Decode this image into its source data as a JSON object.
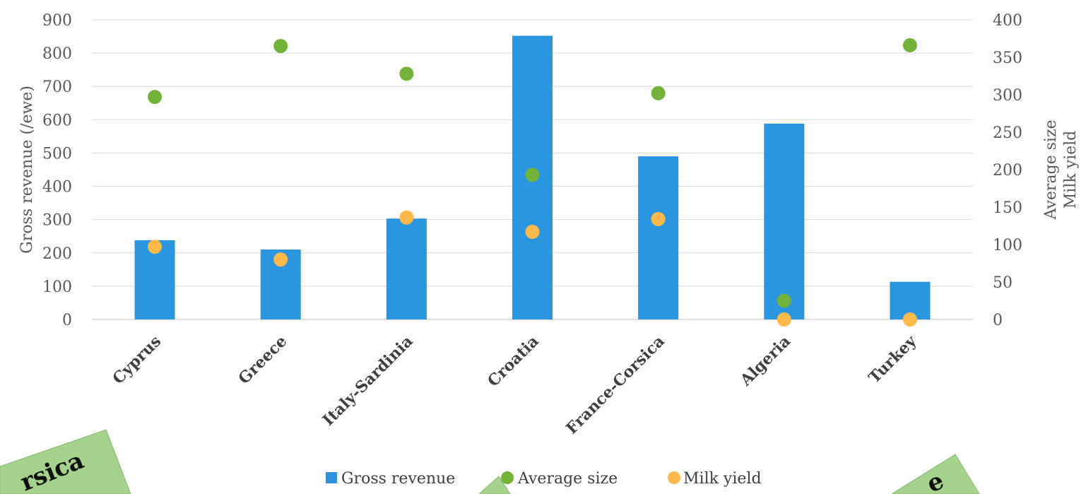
{
  "chart_data": {
    "type": "bar",
    "categories": [
      "Cyprus",
      "Greece",
      "Italy-Sardinia",
      "Croatia",
      "France-Corsica",
      "Algeria",
      "Turkey"
    ],
    "series": [
      {
        "name": "Gross revenue",
        "type": "bar",
        "axis": "left",
        "color": "#2a96e0",
        "values": [
          238,
          210,
          303,
          852,
          490,
          588,
          113
        ]
      },
      {
        "name": "Average size",
        "type": "scatter",
        "axis": "right",
        "color": "#73b33a",
        "values": [
          297,
          365,
          328,
          193,
          302,
          25,
          366
        ]
      },
      {
        "name": "Milk yield",
        "type": "scatter",
        "axis": "right",
        "color": "#ffb84a",
        "values": [
          97,
          80,
          136,
          117,
          134,
          0,
          0
        ]
      }
    ],
    "ylabel": "Gross revenue (/ewe)",
    "y2label": [
      "Average size",
      "Milk yield"
    ],
    "ylim": [
      0,
      900
    ],
    "y2lim": [
      0,
      400
    ],
    "yticks": [
      "0",
      "100",
      "200",
      "300",
      "400",
      "500",
      "600",
      "700",
      "800",
      "900"
    ],
    "y2ticks": [
      "0",
      "50",
      "100",
      "150",
      "200",
      "250",
      "300",
      "350",
      "400"
    ],
    "grid": true,
    "legend_position": "bottom",
    "annotations": [
      "rsica",
      "e"
    ]
  }
}
